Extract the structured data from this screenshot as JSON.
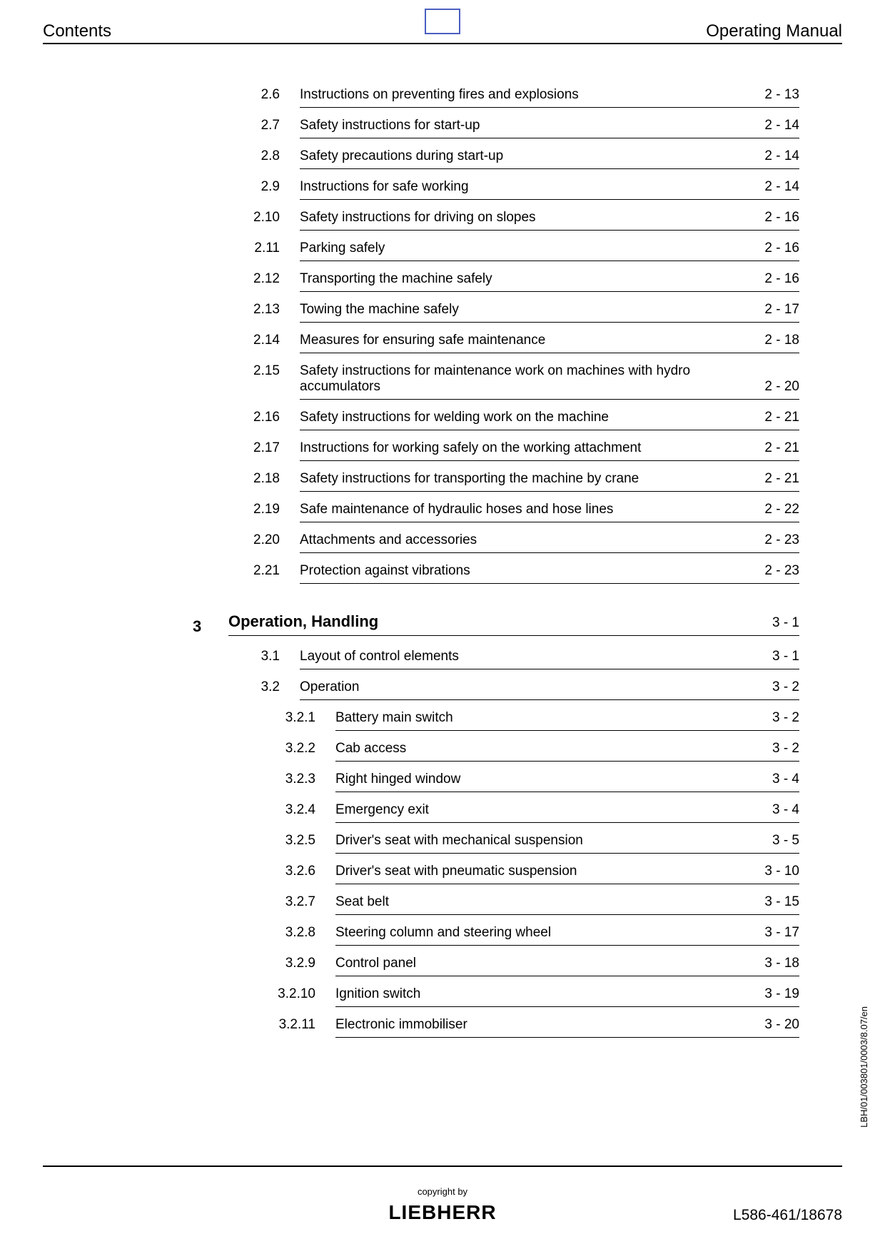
{
  "header": {
    "left": "Contents",
    "right": "Operating Manual"
  },
  "entries2": [
    {
      "num": "2.6",
      "title": "Instructions on preventing fires and explosions",
      "page": "2 - 13"
    },
    {
      "num": "2.7",
      "title": "Safety instructions for start-up",
      "page": "2 - 14"
    },
    {
      "num": "2.8",
      "title": "Safety precautions during start-up",
      "page": "2 - 14"
    },
    {
      "num": "2.9",
      "title": "Instructions for safe working",
      "page": "2 - 14"
    },
    {
      "num": "2.10",
      "title": "Safety instructions for driving on slopes",
      "page": "2 - 16"
    },
    {
      "num": "2.11",
      "title": "Parking safely",
      "page": "2 - 16"
    },
    {
      "num": "2.12",
      "title": "Transporting the machine safely",
      "page": "2 - 16"
    },
    {
      "num": "2.13",
      "title": "Towing the machine safely",
      "page": "2 - 17"
    },
    {
      "num": "2.14",
      "title": "Measures for ensuring safe maintenance",
      "page": "2 - 18"
    },
    {
      "num": "2.15",
      "title": "Safety instructions for maintenance work on machines with hydro accumulators",
      "page": "2 - 20"
    },
    {
      "num": "2.16",
      "title": "Safety instructions for welding work on the machine",
      "page": "2 - 21"
    },
    {
      "num": "2.17",
      "title": "Instructions for working safely on the working attachment",
      "page": "2 - 21"
    },
    {
      "num": "2.18",
      "title": "Safety instructions for transporting the machine by crane",
      "page": "2 - 21"
    },
    {
      "num": "2.19",
      "title": "Safe maintenance of hydraulic hoses and hose lines",
      "page": "2 - 22"
    },
    {
      "num": "2.20",
      "title": "Attachments and accessories",
      "page": "2 - 23"
    },
    {
      "num": "2.21",
      "title": "Protection against vibrations",
      "page": "2 - 23"
    }
  ],
  "section3": {
    "num": "3",
    "title": "Operation, Handling",
    "page": "3 - 1"
  },
  "entries3": [
    {
      "num": "3.1",
      "title": "Layout of control elements",
      "page": "3 - 1"
    },
    {
      "num": "3.2",
      "title": "Operation",
      "page": "3 - 2"
    }
  ],
  "entries32": [
    {
      "num": "3.2.1",
      "title": "Battery main switch",
      "page": "3 - 2"
    },
    {
      "num": "3.2.2",
      "title": "Cab access",
      "page": "3 - 2"
    },
    {
      "num": "3.2.3",
      "title": "Right hinged window",
      "page": "3 - 4"
    },
    {
      "num": "3.2.4",
      "title": "Emergency exit",
      "page": "3 - 4"
    },
    {
      "num": "3.2.5",
      "title": "Driver's seat with mechanical suspension",
      "page": "3 - 5"
    },
    {
      "num": "3.2.6",
      "title": "Driver's seat with pneumatic suspension",
      "page": "3 - 10"
    },
    {
      "num": "3.2.7",
      "title": "Seat belt",
      "page": "3 - 15"
    },
    {
      "num": "3.2.8",
      "title": "Steering column and steering wheel",
      "page": "3 - 17"
    },
    {
      "num": "3.2.9",
      "title": "Control panel",
      "page": "3 - 18"
    },
    {
      "num": "3.2.10",
      "title": "Ignition switch",
      "page": "3 - 19"
    },
    {
      "num": "3.2.11",
      "title": "Electronic immobiliser",
      "page": "3 - 20"
    }
  ],
  "footer": {
    "copyright": "copyright by",
    "brand": "LIEBHERR",
    "docnum": "L586-461/18678"
  },
  "side": "LBH/01/003801/0003/8.07/en",
  "style": {
    "text_color": "#000000",
    "background_color": "#ffffff",
    "box_border_color": "#4a5fc1",
    "rule_color": "#000000",
    "body_fontsize": 19,
    "section_fontsize": 22,
    "header_fontsize": 24,
    "footer_fontsize": 21,
    "side_fontsize": 13
  }
}
